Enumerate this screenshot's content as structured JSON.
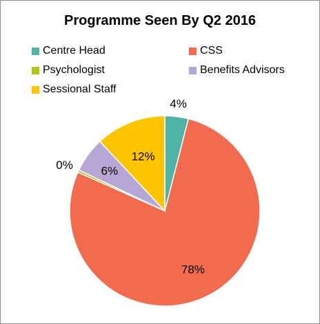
{
  "chart_data": {
    "type": "pie",
    "title": "Programme Seen By Q2 2016",
    "legend_position": "top",
    "slices": [
      {
        "name": "Centre Head",
        "value": 4,
        "label": "4%",
        "color": "#4fb3a6"
      },
      {
        "name": "CSS",
        "value": 78,
        "label": "78%",
        "color": "#f26b4f"
      },
      {
        "name": "Psychologist",
        "value": 0.4,
        "label": "0%",
        "color": "#b5c21a"
      },
      {
        "name": "Benefits Advisors",
        "value": 6,
        "label": "6%",
        "color": "#b6a7d6"
      },
      {
        "name": "Sessional Staff",
        "value": 12,
        "label": "12%",
        "color": "#ffc400"
      }
    ]
  }
}
